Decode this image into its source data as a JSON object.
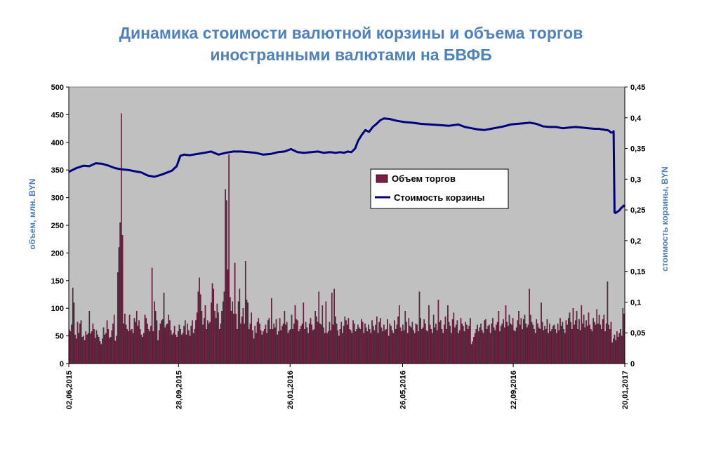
{
  "chart_data": {
    "type": "bar+line",
    "title_lines": [
      "Динамика стоимости валютной корзины и объема торгов",
      "иностранными валютами на БВФБ"
    ],
    "y_left_label": "объем, млн. BYN",
    "y_right_label": "стоимость корзины, BYN",
    "y_left_ticks": [
      "0",
      "50",
      "100",
      "150",
      "200",
      "250",
      "300",
      "350",
      "400",
      "450",
      "500"
    ],
    "y_right_ticks": [
      "0",
      "0,05",
      "0,1",
      "0,15",
      "0,2",
      "0,25",
      "0,3",
      "0,35",
      "0,4",
      "0,45"
    ],
    "y_left_range": [
      0,
      500
    ],
    "y_right_range": [
      0,
      0.45
    ],
    "x_range": [
      "2015-06-02",
      "2017-01-20"
    ],
    "x_tick_labels": [
      "02,06,2015",
      "28,09,2015",
      "26,01,2016",
      "26,05,2016",
      "22,09,2016",
      "20,01,2017"
    ],
    "x_tick_dates": [
      "2015-06-02",
      "2015-09-28",
      "2016-01-26",
      "2016-05-26",
      "2016-09-22",
      "2017-01-20"
    ],
    "legend": {
      "placement": "center-right",
      "bar_label": "Объем торгов",
      "line_label": "Стоимость корзины"
    },
    "plot_background": "#c0c0c0",
    "colors": {
      "bars": "#7b1e45",
      "line": "#00007f",
      "title": "#4f81bd",
      "axis_title": "#4f81bd"
    },
    "series": [
      {
        "name": "Объем торгов",
        "kind": "bar",
        "axis": "left",
        "values": [
          62,
          58,
          70,
          137,
          110,
          52,
          45,
          75,
          55,
          72,
          78,
          48,
          50,
          42,
          58,
          52,
          55,
          95,
          54,
          58,
          72,
          62,
          46,
          60,
          52,
          48,
          40,
          35,
          45,
          65,
          52,
          55,
          78,
          62,
          46,
          48,
          60,
          72,
          88,
          41,
          50,
          165,
          210,
          255,
          452,
          232,
          72,
          90,
          70,
          62,
          58,
          88,
          60,
          62,
          55,
          82,
          75,
          95,
          68,
          78,
          62,
          52,
          48,
          55,
          88,
          82,
          72,
          62,
          58,
          68,
          173,
          58,
          112,
          95,
          78,
          42,
          60,
          72,
          78,
          80,
          128,
          65,
          70,
          72,
          88,
          78,
          60,
          52,
          55,
          68,
          52,
          48,
          58,
          70,
          62,
          52,
          55,
          68,
          78,
          52,
          72,
          60,
          50,
          68,
          78,
          55,
          62,
          78,
          92,
          130,
          155,
          125,
          95,
          70,
          82,
          105,
          62,
          78,
          72,
          75,
          110,
          145,
          135,
          95,
          82,
          108,
          92,
          62,
          72,
          95,
          112,
          130,
          315,
          295,
          170,
          378,
          120,
          95,
          112,
          90,
          182,
          90,
          62,
          112,
          135,
          72,
          85,
          100,
          72,
          185,
          115,
          110,
          62,
          72,
          92,
          60,
          45,
          68,
          55,
          75,
          82,
          72,
          60,
          52,
          58,
          62,
          70,
          55,
          78,
          82,
          62,
          118,
          62,
          72,
          65,
          80,
          52,
          58,
          82,
          60,
          68,
          72,
          95,
          70,
          75,
          55,
          60,
          62,
          88,
          62,
          72,
          105,
          80,
          78,
          58,
          62,
          68,
          72,
          110,
          62,
          75,
          65,
          55,
          72,
          82,
          70,
          60,
          62,
          95,
          85,
          75,
          130,
          72,
          70,
          105,
          65,
          55,
          112,
          55,
          58,
          75,
          60,
          128,
          70,
          135,
          85,
          72,
          60,
          50,
          62,
          75,
          55,
          68,
          85,
          78,
          70,
          82,
          62,
          60,
          55,
          78,
          72,
          58,
          62,
          70,
          65,
          62,
          80,
          75,
          55,
          72,
          65,
          58,
          70,
          62,
          55,
          78,
          68,
          60,
          70,
          85,
          55,
          75,
          82,
          65,
          58,
          70,
          60,
          62,
          80,
          50,
          72,
          68,
          60,
          55,
          78,
          62,
          70,
          85,
          105,
          65,
          58,
          70,
          60,
          95,
          75,
          55,
          82,
          68,
          65,
          75,
          60,
          55,
          72,
          70,
          58,
          130,
          82,
          62,
          65,
          80,
          72,
          60,
          58,
          105,
          70,
          62,
          55,
          88,
          65,
          72,
          60,
          115,
          75,
          78,
          62,
          55,
          70,
          85,
          62,
          105,
          75,
          68,
          55,
          80,
          92,
          65,
          70,
          78,
          55,
          60,
          82,
          72,
          68,
          58,
          75,
          70,
          62,
          68,
          82,
          35,
          40,
          48,
          55,
          62,
          70,
          58,
          65,
          72,
          60,
          55,
          78,
          80,
          62,
          68,
          70,
          55,
          72,
          82,
          65,
          60,
          70,
          75,
          95,
          58,
          68,
          72,
          80,
          65,
          105,
          75,
          68,
          88,
          72,
          70,
          82,
          60,
          58,
          65,
          78,
          95,
          70,
          82,
          62,
          80,
          88,
          72,
          65,
          70,
          135,
          88,
          75,
          70,
          62,
          55,
          80,
          72,
          65,
          62,
          110,
          75,
          60,
          68,
          62,
          80,
          55,
          72,
          58,
          62,
          68,
          70,
          62,
          55,
          72,
          60,
          82,
          68,
          75,
          62,
          55,
          78,
          70,
          82,
          92,
          75,
          62,
          100,
          70,
          78,
          95,
          62,
          80,
          60,
          105,
          72,
          88,
          65,
          78,
          68,
          92,
          70,
          62,
          58,
          82,
          75,
          70,
          98,
          72,
          88,
          70,
          62,
          80,
          88,
          58,
          72,
          148,
          70,
          62,
          75,
          38,
          45,
          52,
          42,
          58,
          48,
          55,
          62,
          50,
          100,
          90
        ]
      },
      {
        "name": "Стоимость корзины",
        "kind": "line",
        "axis": "right",
        "points": [
          [
            "2015-06-02",
            0.312
          ],
          [
            "2015-06-10",
            0.318
          ],
          [
            "2015-06-18",
            0.322
          ],
          [
            "2015-06-24",
            0.321
          ],
          [
            "2015-07-01",
            0.326
          ],
          [
            "2015-07-08",
            0.325
          ],
          [
            "2015-07-15",
            0.322
          ],
          [
            "2015-07-22",
            0.318
          ],
          [
            "2015-07-29",
            0.316
          ],
          [
            "2015-08-05",
            0.315
          ],
          [
            "2015-08-12",
            0.313
          ],
          [
            "2015-08-19",
            0.311
          ],
          [
            "2015-08-26",
            0.306
          ],
          [
            "2015-09-02",
            0.304
          ],
          [
            "2015-09-09",
            0.307
          ],
          [
            "2015-09-16",
            0.311
          ],
          [
            "2015-09-21",
            0.314
          ],
          [
            "2015-09-26",
            0.321
          ],
          [
            "2015-09-30",
            0.338
          ],
          [
            "2015-10-04",
            0.34
          ],
          [
            "2015-10-10",
            0.339
          ],
          [
            "2015-10-18",
            0.341
          ],
          [
            "2015-10-26",
            0.343
          ],
          [
            "2015-11-02",
            0.345
          ],
          [
            "2015-11-10",
            0.34
          ],
          [
            "2015-11-18",
            0.343
          ],
          [
            "2015-11-26",
            0.345
          ],
          [
            "2015-12-04",
            0.345
          ],
          [
            "2015-12-12",
            0.344
          ],
          [
            "2015-12-20",
            0.343
          ],
          [
            "2015-12-28",
            0.34
          ],
          [
            "2016-01-05",
            0.341
          ],
          [
            "2016-01-13",
            0.344
          ],
          [
            "2016-01-20",
            0.345
          ],
          [
            "2016-01-27",
            0.349
          ],
          [
            "2016-02-03",
            0.344
          ],
          [
            "2016-02-10",
            0.343
          ],
          [
            "2016-02-18",
            0.344
          ],
          [
            "2016-02-25",
            0.345
          ],
          [
            "2016-03-02",
            0.343
          ],
          [
            "2016-03-09",
            0.344
          ],
          [
            "2016-03-15",
            0.343
          ],
          [
            "2016-03-20",
            0.344
          ],
          [
            "2016-03-24",
            0.343
          ],
          [
            "2016-03-28",
            0.345
          ],
          [
            "2016-04-01",
            0.344
          ],
          [
            "2016-04-05",
            0.35
          ],
          [
            "2016-04-08",
            0.362
          ],
          [
            "2016-04-12",
            0.372
          ],
          [
            "2016-04-16",
            0.38
          ],
          [
            "2016-04-20",
            0.377
          ],
          [
            "2016-04-24",
            0.385
          ],
          [
            "2016-04-28",
            0.39
          ],
          [
            "2016-05-02",
            0.396
          ],
          [
            "2016-05-06",
            0.399
          ],
          [
            "2016-05-12",
            0.398
          ],
          [
            "2016-05-20",
            0.395
          ],
          [
            "2016-05-28",
            0.393
          ],
          [
            "2016-06-05",
            0.392
          ],
          [
            "2016-06-15",
            0.39
          ],
          [
            "2016-06-25",
            0.389
          ],
          [
            "2016-07-05",
            0.388
          ],
          [
            "2016-07-15",
            0.387
          ],
          [
            "2016-07-25",
            0.389
          ],
          [
            "2016-08-01",
            0.385
          ],
          [
            "2016-08-08",
            0.383
          ],
          [
            "2016-08-15",
            0.381
          ],
          [
            "2016-08-22",
            0.38
          ],
          [
            "2016-08-29",
            0.382
          ],
          [
            "2016-09-05",
            0.384
          ],
          [
            "2016-09-12",
            0.386
          ],
          [
            "2016-09-19",
            0.389
          ],
          [
            "2016-09-26",
            0.39
          ],
          [
            "2016-10-03",
            0.391
          ],
          [
            "2016-10-10",
            0.392
          ],
          [
            "2016-10-17",
            0.39
          ],
          [
            "2016-10-24",
            0.386
          ],
          [
            "2016-10-31",
            0.385
          ],
          [
            "2016-11-07",
            0.385
          ],
          [
            "2016-11-14",
            0.383
          ],
          [
            "2016-11-21",
            0.384
          ],
          [
            "2016-11-28",
            0.385
          ],
          [
            "2016-12-05",
            0.384
          ],
          [
            "2016-12-12",
            0.383
          ],
          [
            "2016-12-19",
            0.382
          ],
          [
            "2016-12-24",
            0.382
          ],
          [
            "2016-12-26",
            0.381
          ],
          [
            "2016-12-28",
            0.381
          ],
          [
            "2016-12-30",
            0.38
          ],
          [
            "2017-01-01",
            0.38
          ],
          [
            "2017-01-03",
            0.379
          ],
          [
            "2017-01-05",
            0.376
          ],
          [
            "2017-01-07",
            0.376
          ],
          [
            "2017-01-08",
            0.378
          ],
          [
            "2017-01-09",
            0.246
          ],
          [
            "2017-01-10",
            0.245
          ],
          [
            "2017-01-11",
            0.246
          ],
          [
            "2017-01-12",
            0.247
          ],
          [
            "2017-01-13",
            0.248
          ],
          [
            "2017-01-14",
            0.249
          ],
          [
            "2017-01-15",
            0.251
          ],
          [
            "2017-01-16",
            0.253
          ],
          [
            "2017-01-17",
            0.254
          ],
          [
            "2017-01-18",
            0.256
          ],
          [
            "2017-01-19",
            0.257
          ],
          [
            "2017-01-20",
            0.255
          ]
        ]
      }
    ]
  }
}
